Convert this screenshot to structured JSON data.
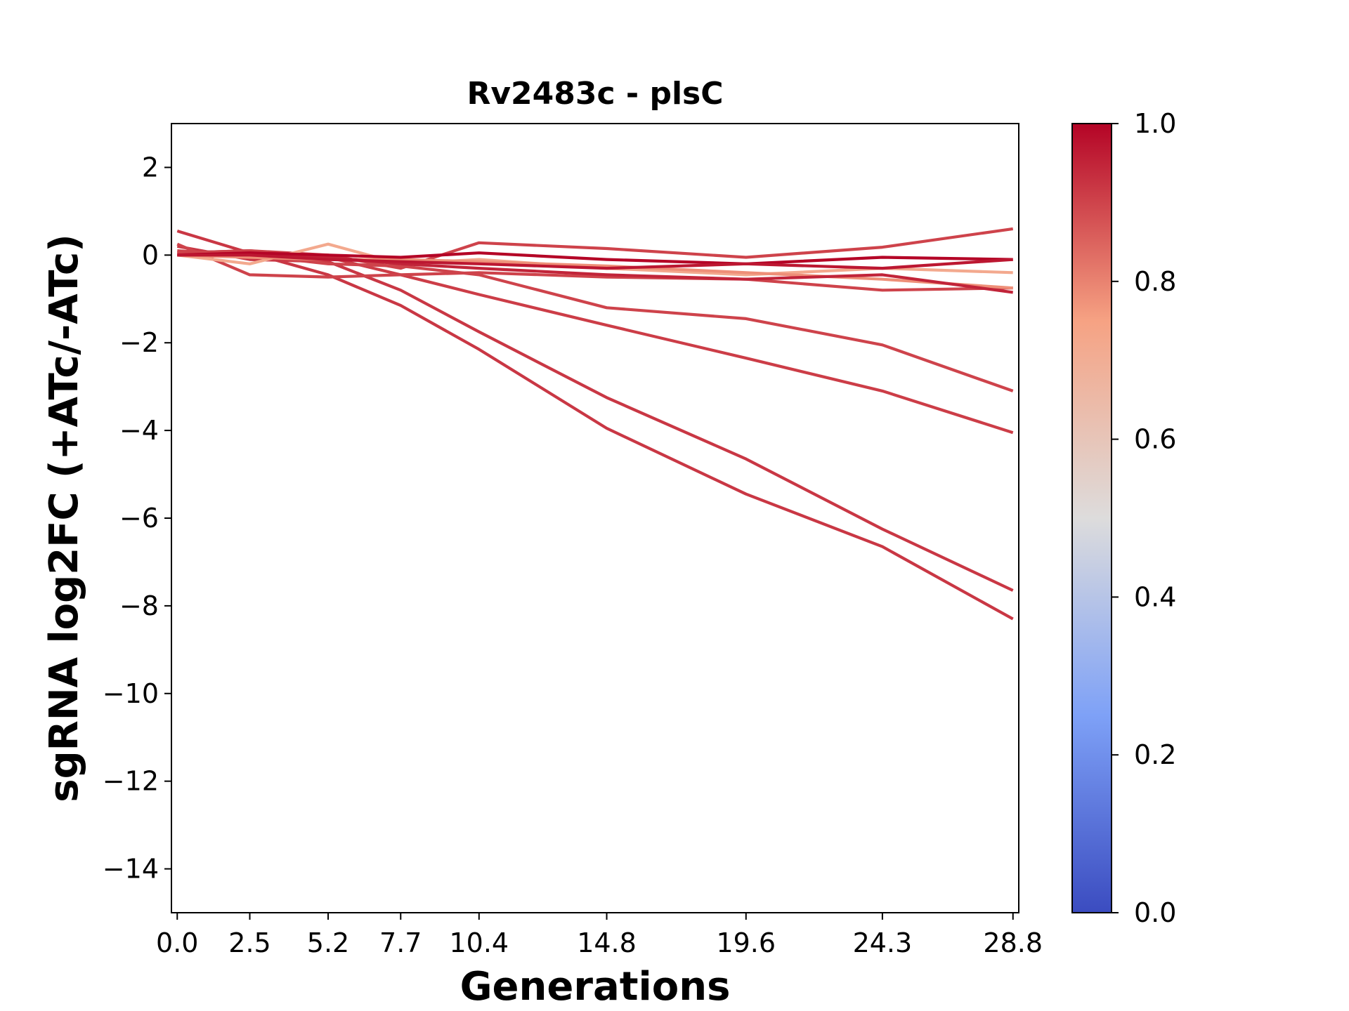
{
  "chart_data": {
    "type": "line",
    "title": "Rv2483c - plsC",
    "xlabel": "Generations",
    "ylabel": "sgRNA log2FC (+ATc/-ATc)",
    "xlim": [
      -0.2,
      29.0
    ],
    "ylim": [
      -15,
      3
    ],
    "x": [
      0.0,
      2.5,
      5.2,
      7.7,
      10.4,
      14.8,
      19.6,
      24.3,
      28.8
    ],
    "x_tick_labels": [
      "0.0",
      "2.5",
      "5.2",
      "7.7",
      "10.4",
      "14.8",
      "19.6",
      "24.3",
      "28.8"
    ],
    "y_ticks": [
      2,
      0,
      -2,
      -4,
      -6,
      -8,
      -10,
      -12,
      -14
    ],
    "y_tick_labels": [
      "2",
      "0",
      "−2",
      "−4",
      "−6",
      "−8",
      "−10",
      "−12",
      "−14"
    ],
    "grid": false,
    "series": [
      {
        "color_value": 0.92,
        "values": [
          0.55,
          0.05,
          -0.45,
          -1.15,
          -2.15,
          -3.95,
          -5.45,
          -6.65,
          -8.3
        ]
      },
      {
        "color_value": 0.92,
        "values": [
          0.2,
          -0.1,
          -0.15,
          -0.8,
          -1.75,
          -3.25,
          -4.65,
          -6.25,
          -7.65
        ]
      },
      {
        "color_value": 0.91,
        "values": [
          0.05,
          0.1,
          -0.05,
          -0.45,
          -0.9,
          -1.6,
          -2.35,
          -3.1,
          -4.05
        ]
      },
      {
        "color_value": 0.9,
        "values": [
          0.1,
          0.0,
          -0.2,
          -0.25,
          -0.45,
          -1.2,
          -1.45,
          -2.05,
          -3.1
        ]
      },
      {
        "color_value": 0.9,
        "values": [
          0.05,
          0.1,
          0.0,
          -0.3,
          0.28,
          0.15,
          -0.05,
          0.18,
          0.6
        ]
      },
      {
        "color_value": 0.9,
        "values": [
          0.25,
          -0.45,
          -0.5,
          -0.45,
          -0.4,
          -0.5,
          -0.55,
          -0.8,
          -0.75
        ]
      },
      {
        "color_value": 0.72,
        "values": [
          0.0,
          -0.2,
          0.25,
          -0.2,
          -0.1,
          -0.3,
          -0.45,
          -0.3,
          -0.4
        ]
      },
      {
        "color_value": 0.78,
        "values": [
          0.0,
          -0.05,
          -0.1,
          -0.1,
          -0.15,
          -0.25,
          -0.4,
          -0.55,
          -0.75
        ]
      },
      {
        "color_value": 0.95,
        "values": [
          0.0,
          0.05,
          -0.05,
          -0.2,
          -0.3,
          -0.45,
          -0.55,
          -0.45,
          -0.85
        ]
      },
      {
        "color_value": 1.0,
        "values": [
          0.0,
          0.05,
          0.0,
          -0.05,
          0.05,
          -0.1,
          -0.2,
          -0.05,
          -0.1
        ]
      },
      {
        "color_value": 0.97,
        "values": [
          0.0,
          0.0,
          -0.1,
          -0.15,
          -0.2,
          -0.3,
          -0.2,
          -0.3,
          -0.1
        ]
      }
    ],
    "colorbar": {
      "colormap": "coolwarm",
      "range": [
        0.0,
        1.0
      ],
      "tick_labels": [
        "0.0",
        "0.2",
        "0.4",
        "0.6",
        "0.8",
        "1.0"
      ],
      "colors": [
        "#3b4cc0",
        "#7ea1f7",
        "#dddcdc",
        "#f6a283",
        "#b40426"
      ]
    }
  }
}
